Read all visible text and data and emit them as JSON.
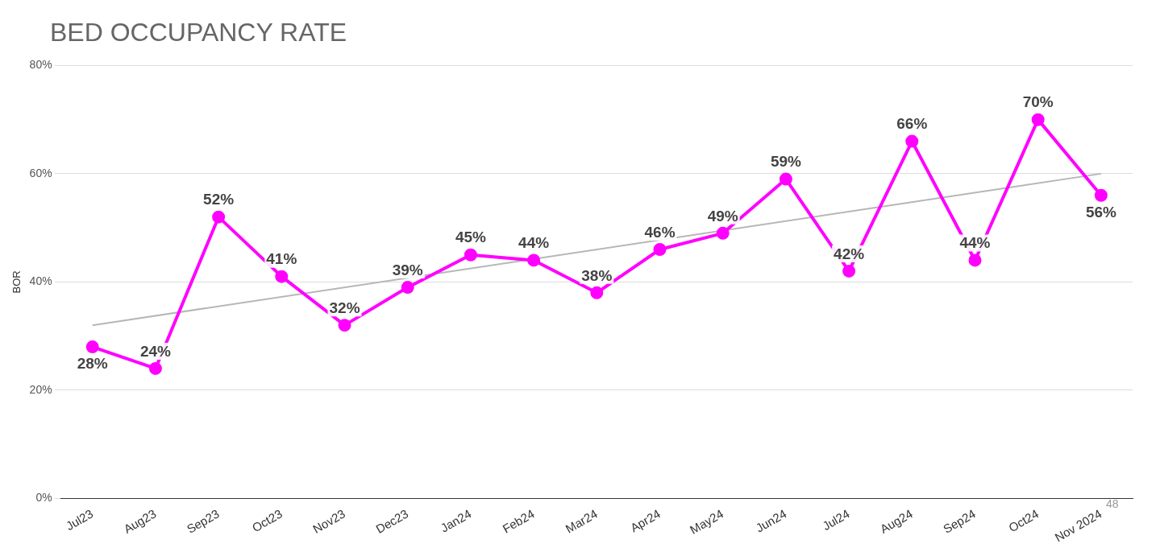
{
  "chart_data": {
    "type": "line",
    "title": "BED OCCUPANCY RATE",
    "ylabel": "BOR",
    "categories": [
      "Jul23",
      "Aug23",
      "Sep23",
      "Oct23",
      "Nov23",
      "Dec23",
      "Jan24",
      "Feb24",
      "Mar24",
      "Apr24",
      "May24",
      "Jun24",
      "Jul24",
      "Aug24",
      "Sep24",
      "Oct24",
      "Nov 2024"
    ],
    "series": [
      {
        "type": "line",
        "color": "#ff00ff",
        "values": [
          28,
          24,
          52,
          41,
          32,
          39,
          45,
          44,
          38,
          46,
          49,
          59,
          42,
          66,
          44,
          70,
          56
        ],
        "value_labels": [
          "28%",
          "24%",
          "52%",
          "41%",
          "32%",
          "39%",
          "45%",
          "44%",
          "38%",
          "46%",
          "49%",
          "59%",
          "42%",
          "66%",
          "44%",
          "70%",
          "56%"
        ],
        "marker": "circle"
      },
      {
        "type": "line",
        "color": "#b7b7b7",
        "x": [
          "Jul23",
          "Nov 2024"
        ],
        "values": [
          32,
          60
        ],
        "marker": "none"
      }
    ],
    "ylim": [
      0,
      80
    ],
    "yticks": [
      {
        "value": 0,
        "label": "0%"
      },
      {
        "value": 20,
        "label": "20%"
      },
      {
        "value": 40,
        "label": "40%"
      },
      {
        "value": 60,
        "label": "60%"
      },
      {
        "value": 80,
        "label": "80%"
      }
    ],
    "grid": "y",
    "legend": false,
    "line_style": "solid",
    "annotations": [
      "48"
    ]
  }
}
